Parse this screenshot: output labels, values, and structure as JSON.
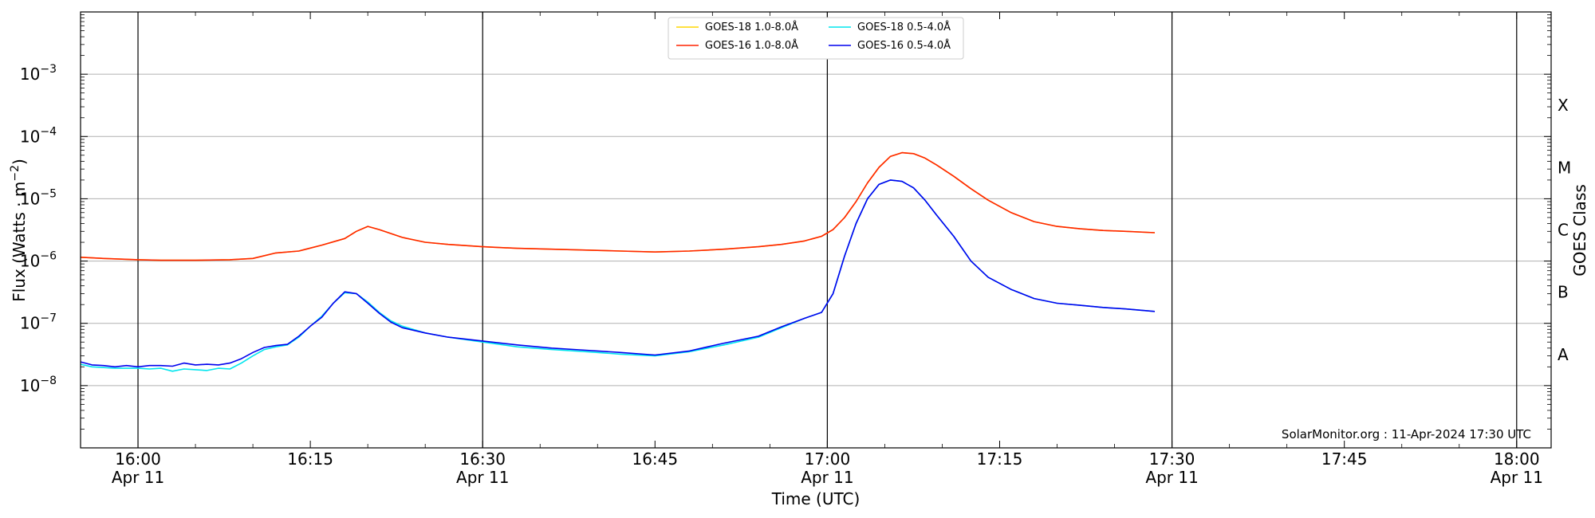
{
  "chart_data": {
    "type": "line",
    "title": "",
    "xlabel": "Time (UTC)",
    "ylabel": "Flux (Watts · m",
    "ylabel_sup": "−2",
    "ylabel_close": ")",
    "y2label": "GOES Class",
    "yscale": "log",
    "xlim": [
      955,
      1083
    ],
    "ylim": [
      1e-09,
      0.01
    ],
    "grid": "horizontal",
    "legend_position": "top-center",
    "vertical_lines_at": [
      "16:00",
      "16:30",
      "17:00",
      "17:30",
      "18:00"
    ],
    "x_ticks": [
      {
        "time": 960,
        "label": "16:00",
        "sub": "Apr 11"
      },
      {
        "time": 975,
        "label": "16:15",
        "sub": ""
      },
      {
        "time": 990,
        "label": "16:30",
        "sub": "Apr 11"
      },
      {
        "time": 1005,
        "label": "16:45",
        "sub": ""
      },
      {
        "time": 1020,
        "label": "17:00",
        "sub": "Apr 11"
      },
      {
        "time": 1035,
        "label": "17:15",
        "sub": ""
      },
      {
        "time": 1050,
        "label": "17:30",
        "sub": "Apr 11"
      },
      {
        "time": 1065,
        "label": "17:45",
        "sub": ""
      },
      {
        "time": 1080,
        "label": "18:00",
        "sub": "Apr 11"
      }
    ],
    "y_ticks": [
      {
        "exp": -8,
        "label": "10",
        "sup": "−8"
      },
      {
        "exp": -7,
        "label": "10",
        "sup": "−7"
      },
      {
        "exp": -6,
        "label": "10",
        "sup": "−6"
      },
      {
        "exp": -5,
        "label": "10",
        "sup": "−5"
      },
      {
        "exp": -4,
        "label": "10",
        "sup": "−4"
      },
      {
        "exp": -3,
        "label": "10",
        "sup": "−3"
      }
    ],
    "goes_classes": [
      {
        "label": "A",
        "exp": -7.5
      },
      {
        "label": "B",
        "exp": -6.5
      },
      {
        "label": "C",
        "exp": -5.5
      },
      {
        "label": "M",
        "exp": -4.5
      },
      {
        "label": "X",
        "exp": -3.5
      }
    ],
    "annotation": "SolarMonitor.org : 11-Apr-2024 17:30 UTC",
    "series": [
      {
        "name": "GOES-18 1.0-8.0Å",
        "color": "#ffd700",
        "x": [
          955,
          957,
          960,
          962,
          965,
          968,
          970,
          972,
          974,
          976,
          978,
          979,
          980,
          981,
          983,
          985,
          987,
          990,
          993,
          996,
          999,
          1002,
          1005,
          1008,
          1011,
          1014,
          1016,
          1018,
          1019.5,
          1020.5,
          1021.5,
          1022.5,
          1023.5,
          1024.5,
          1025.5,
          1026.5,
          1027.5,
          1028.5,
          1029.5,
          1031,
          1032.5,
          1034,
          1036,
          1038,
          1040,
          1042,
          1044,
          1046,
          1048.5
        ],
        "y": [
          1.15e-06,
          1.1e-06,
          1.05e-06,
          1.03e-06,
          1.03e-06,
          1.05e-06,
          1.1e-06,
          1.35e-06,
          1.45e-06,
          1.8e-06,
          2.3e-06,
          3e-06,
          3.6e-06,
          3.2e-06,
          2.4e-06,
          2e-06,
          1.85e-06,
          1.7e-06,
          1.6e-06,
          1.55e-06,
          1.5e-06,
          1.45e-06,
          1.4e-06,
          1.45e-06,
          1.55e-06,
          1.7e-06,
          1.85e-06,
          2.1e-06,
          2.5e-06,
          3.2e-06,
          5e-06,
          9e-06,
          1.8e-05,
          3.2e-05,
          4.8e-05,
          5.5e-05,
          5.3e-05,
          4.5e-05,
          3.5e-05,
          2.3e-05,
          1.45e-05,
          9.5e-06,
          6e-06,
          4.3e-06,
          3.6e-06,
          3.3e-06,
          3.1e-06,
          3e-06,
          2.85e-06
        ]
      },
      {
        "name": "GOES-16 1.0-8.0Å",
        "color": "#ff2400",
        "x": [
          955,
          957,
          960,
          962,
          965,
          968,
          970,
          972,
          974,
          976,
          978,
          979,
          980,
          981,
          983,
          985,
          987,
          990,
          993,
          996,
          999,
          1002,
          1005,
          1008,
          1011,
          1014,
          1016,
          1018,
          1019.5,
          1020.5,
          1021.5,
          1022.5,
          1023.5,
          1024.5,
          1025.5,
          1026.5,
          1027.5,
          1028.5,
          1029.5,
          1031,
          1032.5,
          1034,
          1036,
          1038,
          1040,
          1042,
          1044,
          1046,
          1048.5
        ],
        "y": [
          1.15e-06,
          1.1e-06,
          1.05e-06,
          1.03e-06,
          1.03e-06,
          1.05e-06,
          1.1e-06,
          1.35e-06,
          1.45e-06,
          1.8e-06,
          2.3e-06,
          3e-06,
          3.6e-06,
          3.2e-06,
          2.4e-06,
          2e-06,
          1.85e-06,
          1.7e-06,
          1.6e-06,
          1.55e-06,
          1.5e-06,
          1.45e-06,
          1.4e-06,
          1.45e-06,
          1.55e-06,
          1.7e-06,
          1.85e-06,
          2.1e-06,
          2.5e-06,
          3.2e-06,
          5e-06,
          9e-06,
          1.8e-05,
          3.2e-05,
          4.8e-05,
          5.5e-05,
          5.3e-05,
          4.5e-05,
          3.5e-05,
          2.3e-05,
          1.45e-05,
          9.5e-06,
          6e-06,
          4.3e-06,
          3.6e-06,
          3.3e-06,
          3.1e-06,
          3e-06,
          2.85e-06
        ]
      },
      {
        "name": "GOES-18 0.5-4.0Å",
        "color": "#00e5ee",
        "x": [
          955,
          956,
          957,
          958,
          959,
          960,
          961,
          962,
          963,
          964,
          965,
          966,
          967,
          968,
          969,
          970,
          971,
          972,
          973,
          974,
          975,
          976,
          977,
          978,
          979,
          980,
          981,
          982,
          983,
          985,
          987,
          990,
          993,
          996,
          999,
          1002,
          1005,
          1008,
          1011,
          1014,
          1016,
          1018,
          1019.5,
          1020.5,
          1021.5,
          1022.5,
          1023.5,
          1024.5,
          1025.5,
          1026.5,
          1027.5,
          1028.5,
          1029.5,
          1031,
          1032.5,
          1034,
          1036,
          1038,
          1040,
          1042,
          1044,
          1046,
          1048.5
        ],
        "y": [
          2.2e-08,
          2e-08,
          1.95e-08,
          1.9e-08,
          1.9e-08,
          1.9e-08,
          1.85e-08,
          1.9e-08,
          1.7e-08,
          1.85e-08,
          1.8e-08,
          1.75e-08,
          1.9e-08,
          1.85e-08,
          2.3e-08,
          3e-08,
          3.8e-08,
          4.2e-08,
          4.5e-08,
          6e-08,
          9e-08,
          1.3e-07,
          2.1e-07,
          3.1e-07,
          3e-07,
          2.2e-07,
          1.5e-07,
          1.1e-07,
          9e-08,
          7e-08,
          6e-08,
          5e-08,
          4.2e-08,
          3.8e-08,
          3.5e-08,
          3.2e-08,
          3e-08,
          3.5e-08,
          4.5e-08,
          6e-08,
          8.5e-08,
          1.2e-07,
          1.5e-07,
          3e-07,
          1.2e-06,
          4e-06,
          1e-05,
          1.7e-05,
          2e-05,
          1.9e-05,
          1.5e-05,
          9.5e-06,
          5.5e-06,
          2.5e-06,
          1e-06,
          5.5e-07,
          3.5e-07,
          2.5e-07,
          2.1e-07,
          1.95e-07,
          1.8e-07,
          1.7e-07,
          1.55e-07
        ]
      },
      {
        "name": "GOES-16 0.5-4.0Å",
        "color": "#0000ee",
        "x": [
          955,
          956,
          957,
          958,
          959,
          960,
          961,
          962,
          963,
          964,
          965,
          966,
          967,
          968,
          969,
          970,
          971,
          972,
          973,
          974,
          975,
          976,
          977,
          978,
          979,
          980,
          981,
          982,
          983,
          985,
          987,
          990,
          993,
          996,
          999,
          1002,
          1005,
          1008,
          1011,
          1014,
          1016,
          1018,
          1019.5,
          1020.5,
          1021.5,
          1022.5,
          1023.5,
          1024.5,
          1025.5,
          1026.5,
          1027.5,
          1028.5,
          1029.5,
          1031,
          1032.5,
          1034,
          1036,
          1038,
          1040,
          1042,
          1044,
          1046,
          1048.5
        ],
        "y": [
          2.4e-08,
          2.15e-08,
          2.1e-08,
          2e-08,
          2.1e-08,
          2e-08,
          2.1e-08,
          2.1e-08,
          2.05e-08,
          2.3e-08,
          2.15e-08,
          2.2e-08,
          2.15e-08,
          2.3e-08,
          2.7e-08,
          3.4e-08,
          4.1e-08,
          4.4e-08,
          4.6e-08,
          6.2e-08,
          9e-08,
          1.25e-07,
          2.1e-07,
          3.2e-07,
          3e-07,
          2.1e-07,
          1.45e-07,
          1.05e-07,
          8.5e-08,
          7e-08,
          6e-08,
          5.2e-08,
          4.5e-08,
          4e-08,
          3.7e-08,
          3.4e-08,
          3.1e-08,
          3.6e-08,
          4.8e-08,
          6.2e-08,
          8.8e-08,
          1.2e-07,
          1.5e-07,
          3e-07,
          1.2e-06,
          4e-06,
          1e-05,
          1.7e-05,
          2e-05,
          1.9e-05,
          1.5e-05,
          9.5e-06,
          5.5e-06,
          2.5e-06,
          1e-06,
          5.5e-07,
          3.5e-07,
          2.5e-07,
          2.1e-07,
          1.95e-07,
          1.8e-07,
          1.7e-07,
          1.55e-07
        ]
      }
    ]
  }
}
